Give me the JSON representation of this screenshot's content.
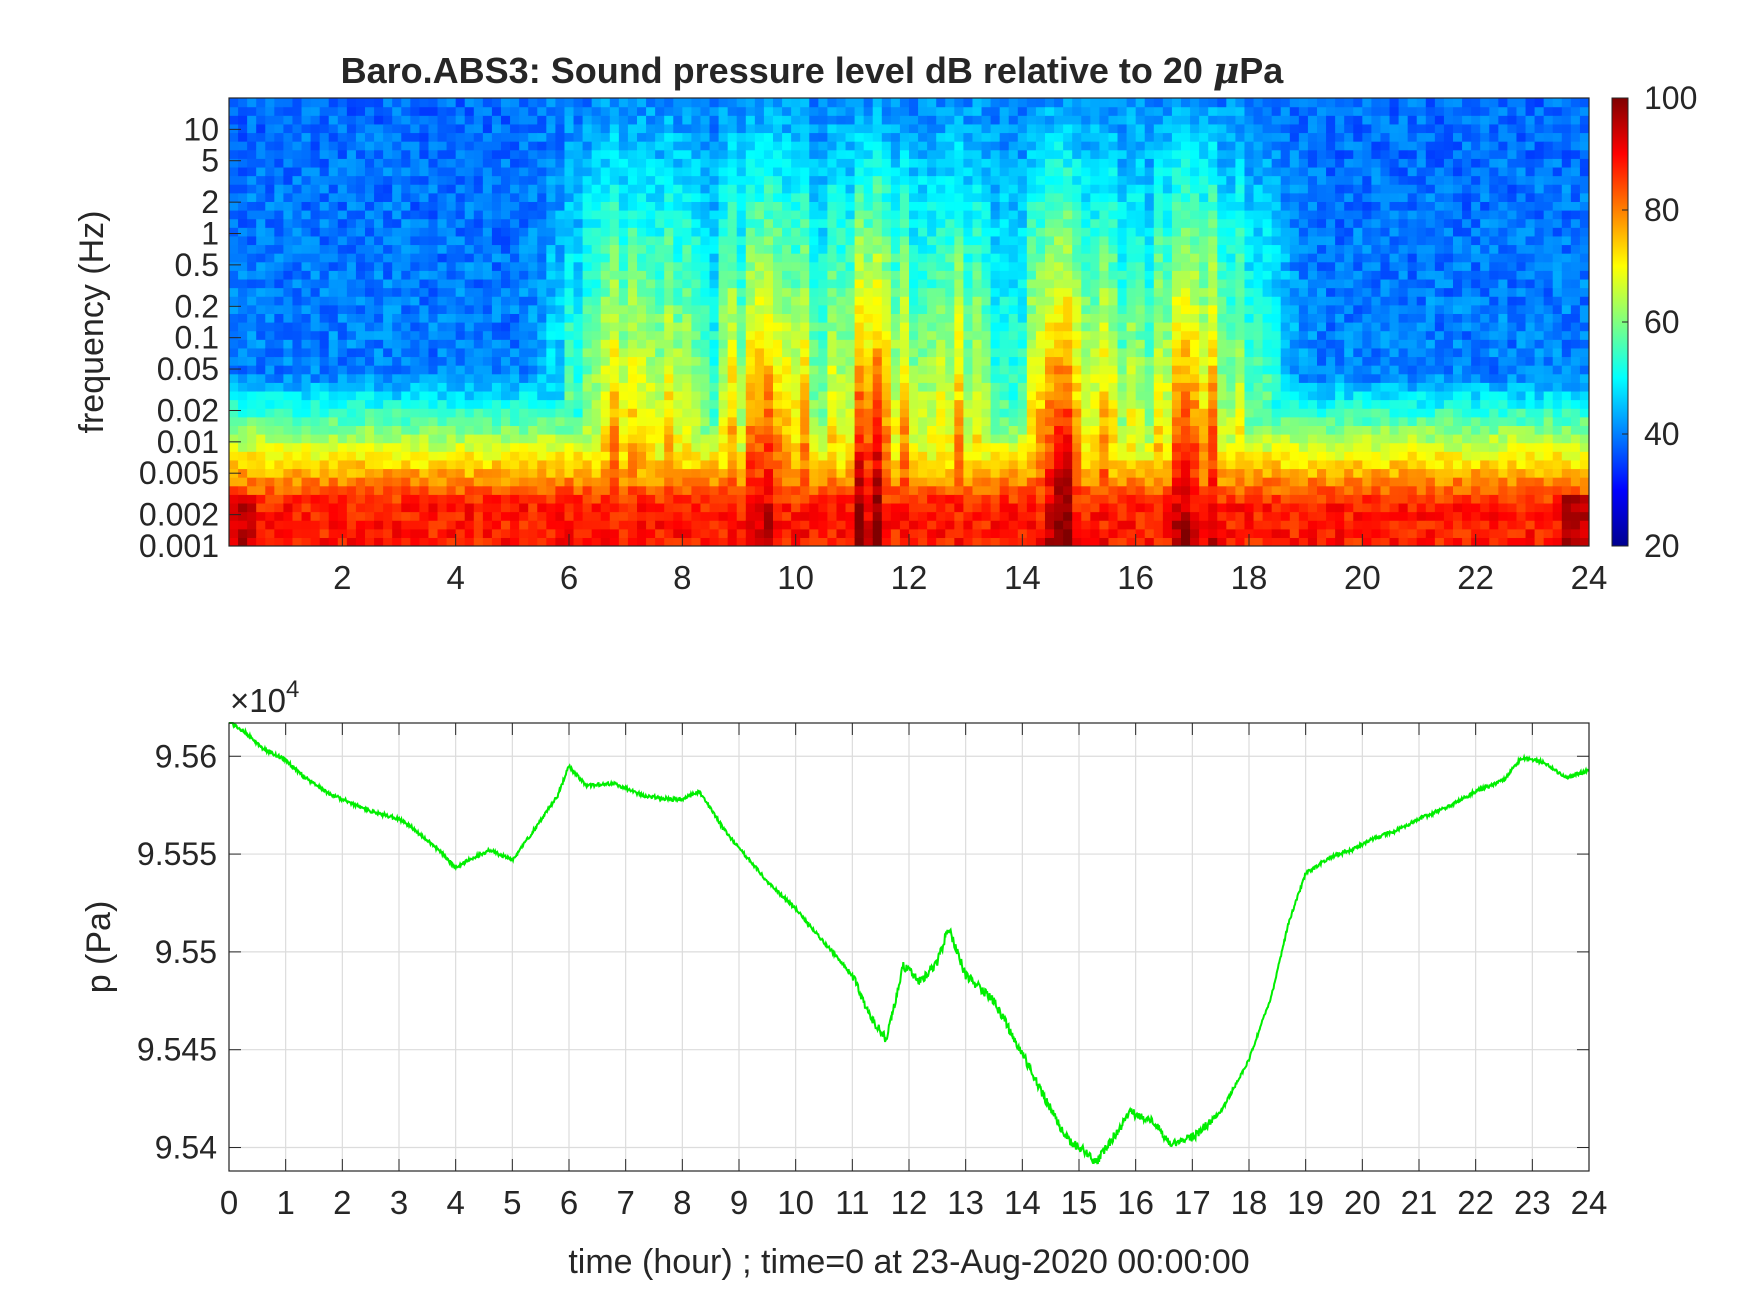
{
  "chart_data": [
    {
      "type": "heatmap",
      "title_main": "Baro.ABS3: Sound pressure level dB relative to 20 ",
      "title_mu": "μ",
      "title_end": "Pa",
      "ylabel": "frequency (Hz)",
      "yscale": "log",
      "xlim": [
        0,
        24
      ],
      "ylim": [
        0.001,
        20
      ],
      "xticks": [
        "2",
        "4",
        "6",
        "8",
        "10",
        "12",
        "14",
        "16",
        "18",
        "20",
        "22",
        "24"
      ],
      "yticks": [
        "0.001",
        "0.002",
        "0.005",
        "0.01",
        "0.02",
        "0.05",
        "0.1",
        "0.2",
        "0.5",
        "1",
        "2",
        "5",
        "10"
      ],
      "colorbar": {
        "colormap": "jet",
        "min": 20,
        "max": 100,
        "ticks": [
          "20",
          "40",
          "60",
          "80",
          "100"
        ]
      },
      "active_periods_hours": [
        [
          6.3,
          8.2
        ],
        [
          8.6,
          10.6
        ],
        [
          10.6,
          12.2
        ],
        [
          12.2,
          13.2
        ],
        [
          14.0,
          16.0
        ],
        [
          16.0,
          18.0
        ]
      ],
      "quiet_level_db": 38,
      "peak_level_db": 88
    },
    {
      "type": "line",
      "xlabel": "time (hour) ; time=0 at 23-Aug-2020 00:00:00",
      "ylabel": "p (Pa)",
      "exponent_base": "×10",
      "exponent_power": "4",
      "xlim": [
        0,
        24
      ],
      "ylim": [
        9.5388,
        9.5617
      ],
      "grid": true,
      "xticks": [
        "0",
        "1",
        "2",
        "3",
        "4",
        "5",
        "6",
        "7",
        "8",
        "9",
        "10",
        "11",
        "12",
        "13",
        "14",
        "15",
        "16",
        "17",
        "18",
        "19",
        "20",
        "21",
        "22",
        "23",
        "24"
      ],
      "yticks": [
        "9.54",
        "9.545",
        "9.55",
        "9.555",
        "9.56"
      ],
      "series": [
        {
          "color": "#00ee00",
          "x": [
            0,
            0.3,
            0.6,
            1.0,
            1.3,
            1.7,
            2.0,
            2.5,
            3.0,
            3.3,
            3.7,
            4.0,
            4.3,
            4.6,
            5.0,
            5.4,
            5.8,
            6.0,
            6.3,
            6.8,
            7.3,
            7.8,
            8.0,
            8.3,
            8.7,
            9.0,
            9.5,
            10.0,
            10.5,
            11.0,
            11.3,
            11.6,
            11.9,
            12.2,
            12.5,
            12.7,
            13.0,
            13.5,
            14.0,
            14.4,
            14.8,
            15.1,
            15.3,
            15.6,
            15.9,
            16.3,
            16.6,
            17.0,
            17.5,
            18.0,
            18.4,
            18.7,
            19.0,
            19.4,
            19.8,
            20.2,
            20.6,
            21.0,
            21.5,
            22.0,
            22.5,
            22.8,
            23.2,
            23.6,
            24.0
          ],
          "y": [
            9.5618,
            9.5612,
            9.5604,
            9.5598,
            9.559,
            9.5582,
            9.5578,
            9.5572,
            9.5568,
            9.5562,
            9.5552,
            9.5543,
            9.5548,
            9.5552,
            9.5547,
            9.5563,
            9.558,
            9.5595,
            9.5585,
            9.5586,
            9.558,
            9.5578,
            9.5578,
            9.5582,
            9.5564,
            9.5553,
            9.5536,
            9.5522,
            9.5505,
            9.5488,
            9.5468,
            9.5455,
            9.5493,
            9.5485,
            9.5495,
            9.5512,
            9.5488,
            9.5475,
            9.5448,
            9.5425,
            9.5404,
            9.5398,
            9.5392,
            9.5405,
            9.5418,
            9.5414,
            9.5402,
            9.5405,
            9.5418,
            9.5445,
            9.5478,
            9.5515,
            9.554,
            9.5548,
            9.5552,
            9.5558,
            9.5562,
            9.5568,
            9.5574,
            9.5582,
            9.5588,
            9.5599,
            9.5597,
            9.5589,
            9.5593
          ]
        }
      ]
    }
  ]
}
